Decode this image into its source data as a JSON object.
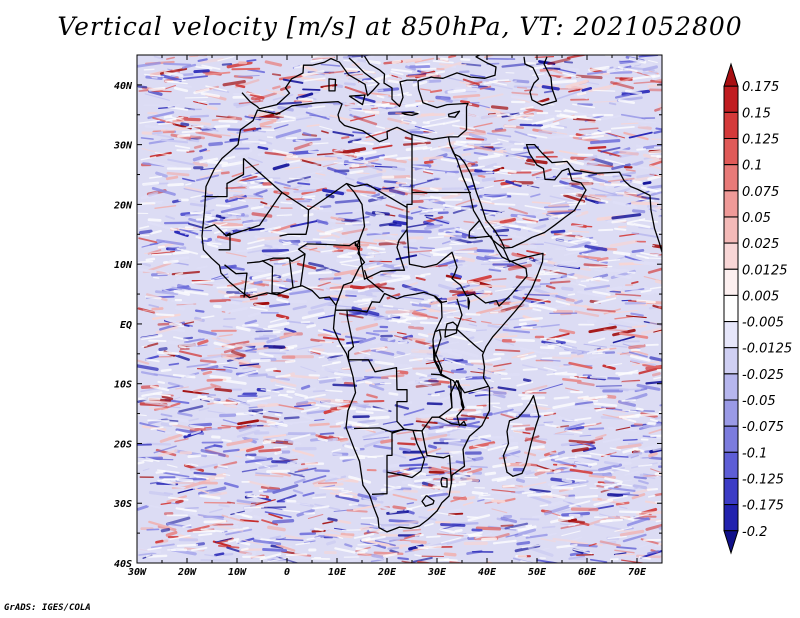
{
  "title": "Vertical velocity [m/s] at 850hPa, VT: 2021052800",
  "credit": "GrADS: IGES/COLA",
  "map": {
    "lon_range": [
      -30,
      75
    ],
    "lat_range": [
      -40,
      45
    ],
    "x_ticks": [
      {
        "lon": -30,
        "label": "30W"
      },
      {
        "lon": -20,
        "label": "20W"
      },
      {
        "lon": -10,
        "label": "10W"
      },
      {
        "lon": 0,
        "label": "0"
      },
      {
        "lon": 10,
        "label": "10E"
      },
      {
        "lon": 20,
        "label": "20E"
      },
      {
        "lon": 30,
        "label": "30E"
      },
      {
        "lon": 40,
        "label": "40E"
      },
      {
        "lon": 50,
        "label": "50E"
      },
      {
        "lon": 60,
        "label": "60E"
      },
      {
        "lon": 70,
        "label": "70E"
      }
    ],
    "y_ticks": [
      {
        "lat": 40,
        "label": "40N"
      },
      {
        "lat": 30,
        "label": "30N"
      },
      {
        "lat": 20,
        "label": "20N"
      },
      {
        "lat": 10,
        "label": "10N"
      },
      {
        "lat": 0,
        "label": "EQ"
      },
      {
        "lat": -10,
        "label": "10S"
      },
      {
        "lat": -20,
        "label": "20S"
      },
      {
        "lat": -30,
        "label": "30S"
      },
      {
        "lat": -40,
        "label": "40S"
      }
    ],
    "colors": {
      "positive": [
        "#ffffff",
        "#f7d6d6",
        "#f0b3b3",
        "#e88a8a",
        "#df6666",
        "#d44444",
        "#c62828",
        "#a30f0f"
      ],
      "negative": [
        "#ffffff",
        "#e0e0f8",
        "#c8c8f2",
        "#aeaeec",
        "#9090e6",
        "#7070dc",
        "#5050d0",
        "#2a2ab8",
        "#14149a"
      ],
      "coast": "#000000"
    }
  },
  "colorbar": {
    "labels": [
      "0.175",
      "0.15",
      "0.125",
      "0.1",
      "0.075",
      "0.05",
      "0.025",
      "0.0125",
      "0.005",
      "-0.005",
      "-0.0125",
      "-0.025",
      "-0.05",
      "-0.075",
      "-0.1",
      "-0.125",
      "-0.175",
      "-0.2"
    ],
    "colors": [
      "#a80f12",
      "#c01c20",
      "#d43a3a",
      "#e05a58",
      "#e87a78",
      "#ef9a98",
      "#f4bab8",
      "#f8d6d6",
      "#fdf0f0",
      "#ffffff",
      "#e6e6fa",
      "#cfcff3",
      "#b6b6ee",
      "#9a9ae6",
      "#7c7cde",
      "#5e5ed6",
      "#3c3cc6",
      "#2222ae",
      "#10108a"
    ]
  }
}
